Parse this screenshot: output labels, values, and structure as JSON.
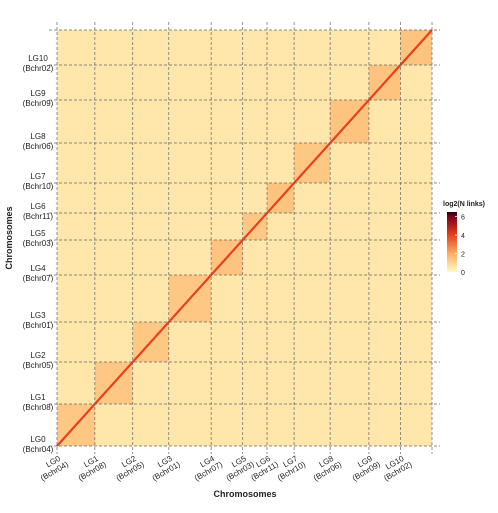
{
  "chart_data": {
    "type": "heatmap",
    "x_label": "Chromosomes",
    "y_label": "Chromosomes",
    "categories": [
      "LG0",
      "LG1",
      "LG2",
      "LG3",
      "LG4",
      "LG5",
      "LG6",
      "LG7",
      "LG8",
      "LG9",
      "LG10"
    ],
    "aliases": [
      "(Bchr04)",
      "(Bchr08)",
      "(Bchr05)",
      "(Bchr01)",
      "(Bchr07)",
      "(Bchr03)",
      "(Bchr11)",
      "(Bchr10)",
      "(Bchr06)",
      "(Bchr09)",
      "(Bchr02)"
    ],
    "sizes": [
      42,
      42,
      40,
      47,
      35,
      27,
      30,
      40,
      43,
      35,
      35
    ],
    "values": [
      [
        1.3,
        0.5,
        0.5,
        0.5,
        0.5,
        0.5,
        0.5,
        0.5,
        0.5,
        0.5,
        0.5
      ],
      [
        0.5,
        1.3,
        0.5,
        0.5,
        0.5,
        0.5,
        0.5,
        0.5,
        0.5,
        0.5,
        0.5
      ],
      [
        0.5,
        0.5,
        1.3,
        0.5,
        0.5,
        0.5,
        0.5,
        0.5,
        0.5,
        0.5,
        0.5
      ],
      [
        0.5,
        0.5,
        0.5,
        1.3,
        0.5,
        0.5,
        0.5,
        0.5,
        0.5,
        0.5,
        0.5
      ],
      [
        0.5,
        0.5,
        0.5,
        0.5,
        1.4,
        0.5,
        0.5,
        0.5,
        0.5,
        0.5,
        0.5
      ],
      [
        0.5,
        0.5,
        0.5,
        0.5,
        0.5,
        1.3,
        0.5,
        0.5,
        0.5,
        0.5,
        0.5
      ],
      [
        0.5,
        0.5,
        0.5,
        0.5,
        0.5,
        0.5,
        1.4,
        0.5,
        0.5,
        0.5,
        0.5
      ],
      [
        0.5,
        0.5,
        0.5,
        0.5,
        0.5,
        0.5,
        0.5,
        1.3,
        0.5,
        0.5,
        0.5
      ],
      [
        0.5,
        0.5,
        0.5,
        0.5,
        0.5,
        0.5,
        0.5,
        0.5,
        1.4,
        0.5,
        0.5
      ],
      [
        0.5,
        0.5,
        0.5,
        0.5,
        0.5,
        0.5,
        0.5,
        0.5,
        0.5,
        1.4,
        0.5
      ],
      [
        0.5,
        0.5,
        0.5,
        0.5,
        0.5,
        0.5,
        0.5,
        0.5,
        0.5,
        0.5,
        1.4
      ]
    ],
    "diagonal_value": 4,
    "colorbar_title": "log2(N links)",
    "clim": [
      0,
      6.5
    ],
    "cticks": [
      0,
      2,
      4,
      6
    ],
    "colorscale": [
      [
        0,
        "#fff8c4"
      ],
      [
        2,
        "#fdae61"
      ],
      [
        4,
        "#e8401c"
      ],
      [
        6,
        "#7a0020"
      ],
      [
        6.5,
        "#2a0008"
      ]
    ]
  }
}
